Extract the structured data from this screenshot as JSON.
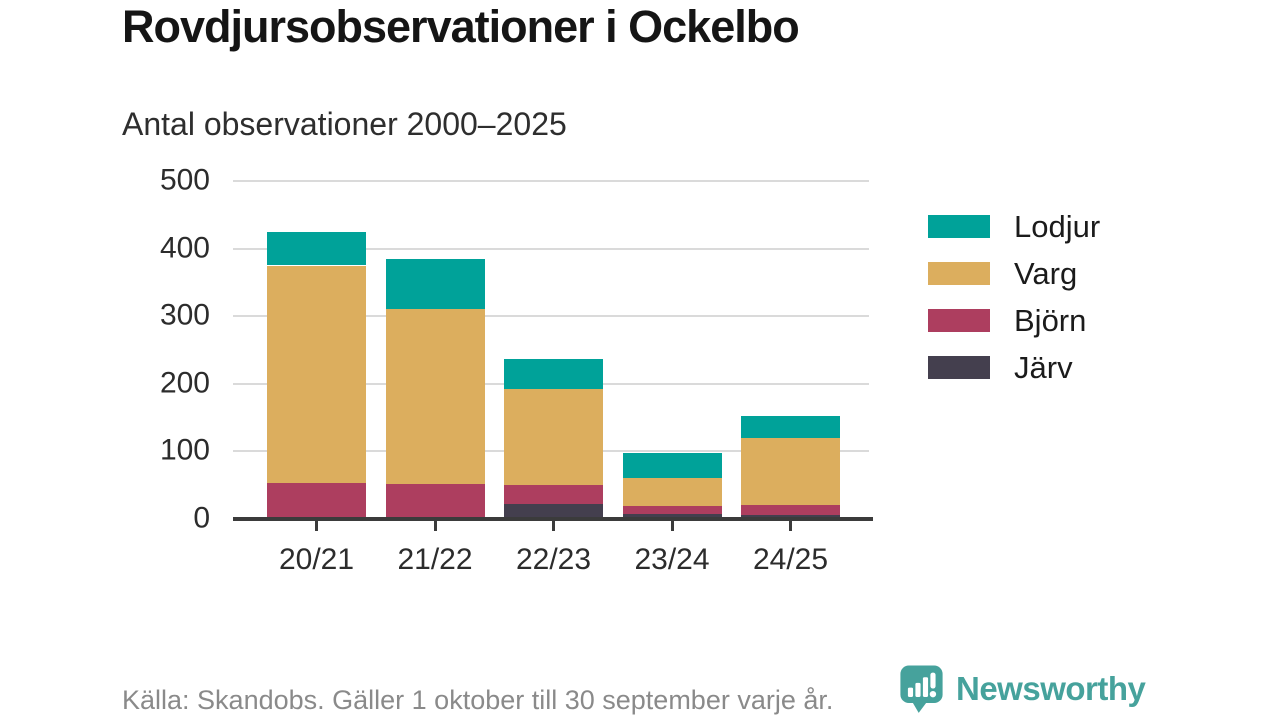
{
  "title": "Rovdjursobservationer i Ockelbo",
  "subtitle": "Antal observationer 2000–2025",
  "footer": {
    "source": "Källa: Skandobs. Gäller 1 oktober till 30 september varje år.",
    "brand": "Newsworthy",
    "brand_color": "#46a29c"
  },
  "chart_data": {
    "type": "bar",
    "stacked": true,
    "title": "Rovdjursobservationer i Ockelbo",
    "subtitle": "Antal observationer 2000–2025",
    "categories": [
      "20/21",
      "21/22",
      "22/23",
      "23/24",
      "24/25"
    ],
    "series": [
      {
        "name": "Järv",
        "color": "#443f4e",
        "values": [
          0,
          0,
          22,
          7,
          6
        ]
      },
      {
        "name": "Björn",
        "color": "#ad3e5f",
        "values": [
          53,
          52,
          28,
          12,
          14
        ]
      },
      {
        "name": "Varg",
        "color": "#dcae5e",
        "values": [
          322,
          258,
          143,
          41,
          100
        ]
      },
      {
        "name": "Lodjur",
        "color": "#00a299",
        "values": [
          50,
          74,
          44,
          37,
          33
        ]
      }
    ],
    "totals": [
      425,
      384,
      237,
      97,
      153
    ],
    "xlabel": "",
    "ylabel": "",
    "ylim": [
      0,
      500
    ],
    "yticks": [
      0,
      100,
      200,
      300,
      400,
      500
    ],
    "grid": true,
    "legend_position": "right",
    "legend_order": [
      "Lodjur",
      "Varg",
      "Björn",
      "Järv"
    ],
    "axis_color": "#3b3b3b",
    "gridline_color": "#dadada",
    "tick_label_color": "#2c2c2c"
  }
}
